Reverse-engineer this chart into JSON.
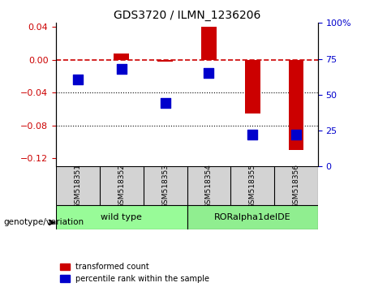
{
  "title": "GDS3720 / ILMN_1236206",
  "samples": [
    "GSM518351",
    "GSM518352",
    "GSM518353",
    "GSM518354",
    "GSM518355",
    "GSM518356"
  ],
  "groups": [
    {
      "label": "wild type",
      "samples": [
        "GSM518351",
        "GSM518352",
        "GSM518353"
      ],
      "color": "#90EE90"
    },
    {
      "label": "RORalpha1delDE",
      "samples": [
        "GSM518354",
        "GSM518355",
        "GSM518356"
      ],
      "color": "#90EE90"
    }
  ],
  "red_values": [
    0.0,
    0.008,
    -0.002,
    0.04,
    -0.065,
    -0.11
  ],
  "blue_values": [
    60,
    68,
    42,
    65,
    18,
    18
  ],
  "left_ylim": [
    0.13,
    0.04
  ],
  "left_yticks": [
    0.04,
    0.0,
    -0.04,
    -0.08,
    -0.12
  ],
  "right_ylim": [
    0,
    100
  ],
  "right_yticks": [
    0,
    25,
    50,
    75,
    100
  ],
  "red_color": "#CC0000",
  "blue_color": "#0000CC",
  "dashed_line_color": "#CC0000",
  "group_label": "genotype/variation",
  "legend_red": "transformed count",
  "legend_blue": "percentile rank within the sample",
  "wild_type_color": "#98FB98",
  "ror_color": "#90EE90"
}
